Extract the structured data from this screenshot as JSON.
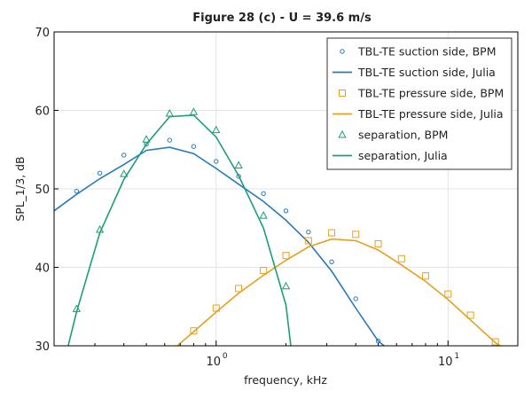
{
  "chart_data": {
    "type": "line",
    "title": "Figure 28 (c) - U = 39.6 m/s",
    "xlabel": "frequency, kHz",
    "ylabel": "SPL_1/3, dB",
    "xscale": "log",
    "xlim": [
      0.2,
      20
    ],
    "ylim": [
      30,
      70
    ],
    "yticks": [
      30,
      40,
      50,
      60,
      70
    ],
    "xtick_labels": [
      {
        "value": 1,
        "base": "10",
        "exp": "0"
      },
      {
        "value": 10,
        "base": "10",
        "exp": "1"
      }
    ],
    "grid": true,
    "legend_position": "top-right",
    "series": [
      {
        "name": "TBL-TE suction side, BPM",
        "kind": "markers",
        "marker": "circle",
        "color": "#2a7ab8",
        "x": [
          0.25,
          0.315,
          0.4,
          0.5,
          0.63,
          0.8,
          1.0,
          1.25,
          1.6,
          2.0,
          2.5,
          3.15,
          4.0,
          5.0
        ],
        "y": [
          49.7,
          52.0,
          54.3,
          55.7,
          56.2,
          55.4,
          53.5,
          51.6,
          49.4,
          47.2,
          44.5,
          40.7,
          36.0,
          30.6
        ]
      },
      {
        "name": "TBL-TE suction side, Julia",
        "kind": "line",
        "color": "#2a7ab8",
        "x": [
          0.2,
          0.25,
          0.315,
          0.4,
          0.5,
          0.63,
          0.8,
          1.0,
          1.25,
          1.6,
          2.0,
          2.5,
          3.15,
          4.0,
          5.0,
          5.3
        ],
        "y": [
          47.2,
          49.3,
          51.3,
          53.1,
          54.9,
          55.3,
          54.5,
          52.6,
          50.6,
          48.4,
          46.0,
          43.2,
          39.5,
          34.8,
          30.6,
          30.0
        ]
      },
      {
        "name": "TBL-TE pressure side, BPM",
        "kind": "markers",
        "marker": "square",
        "color": "#e6a020",
        "x": [
          0.8,
          1.0,
          1.25,
          1.6,
          2.0,
          2.5,
          3.15,
          4.0,
          5.0,
          6.3,
          8.0,
          10.0,
          12.5,
          16.0
        ],
        "y": [
          31.9,
          34.8,
          37.3,
          39.6,
          41.5,
          43.4,
          44.4,
          44.2,
          43.0,
          41.1,
          38.9,
          36.6,
          33.9,
          30.5
        ]
      },
      {
        "name": "TBL-TE pressure side, Julia",
        "kind": "line",
        "color": "#e6a020",
        "x": [
          0.68,
          0.8,
          1.0,
          1.25,
          1.6,
          2.0,
          2.5,
          3.15,
          4.0,
          5.0,
          6.3,
          8.0,
          10.0,
          12.5,
          16.0,
          17.5
        ],
        "y": [
          30.0,
          31.8,
          34.3,
          36.7,
          39.0,
          40.9,
          42.6,
          43.6,
          43.4,
          42.2,
          40.3,
          38.2,
          35.9,
          33.3,
          30.4,
          29.7
        ]
      },
      {
        "name": "separation, BPM",
        "kind": "markers",
        "marker": "triangle",
        "color": "#1a9e7a",
        "x": [
          0.25,
          0.315,
          0.4,
          0.5,
          0.63,
          0.8,
          1.0,
          1.25,
          1.6,
          2.0
        ],
        "y": [
          34.7,
          44.8,
          51.9,
          56.3,
          59.6,
          59.8,
          57.5,
          53.0,
          46.6,
          37.6
        ]
      },
      {
        "name": "separation, Julia",
        "kind": "line",
        "color": "#1a9e7a",
        "x": [
          0.23,
          0.25,
          0.315,
          0.4,
          0.5,
          0.63,
          0.8,
          1.0,
          1.25,
          1.6,
          2.0,
          2.1
        ],
        "y": [
          30.0,
          34.3,
          44.4,
          51.2,
          55.7,
          59.2,
          59.4,
          56.6,
          51.7,
          45.0,
          35.2,
          30.0
        ]
      }
    ]
  }
}
